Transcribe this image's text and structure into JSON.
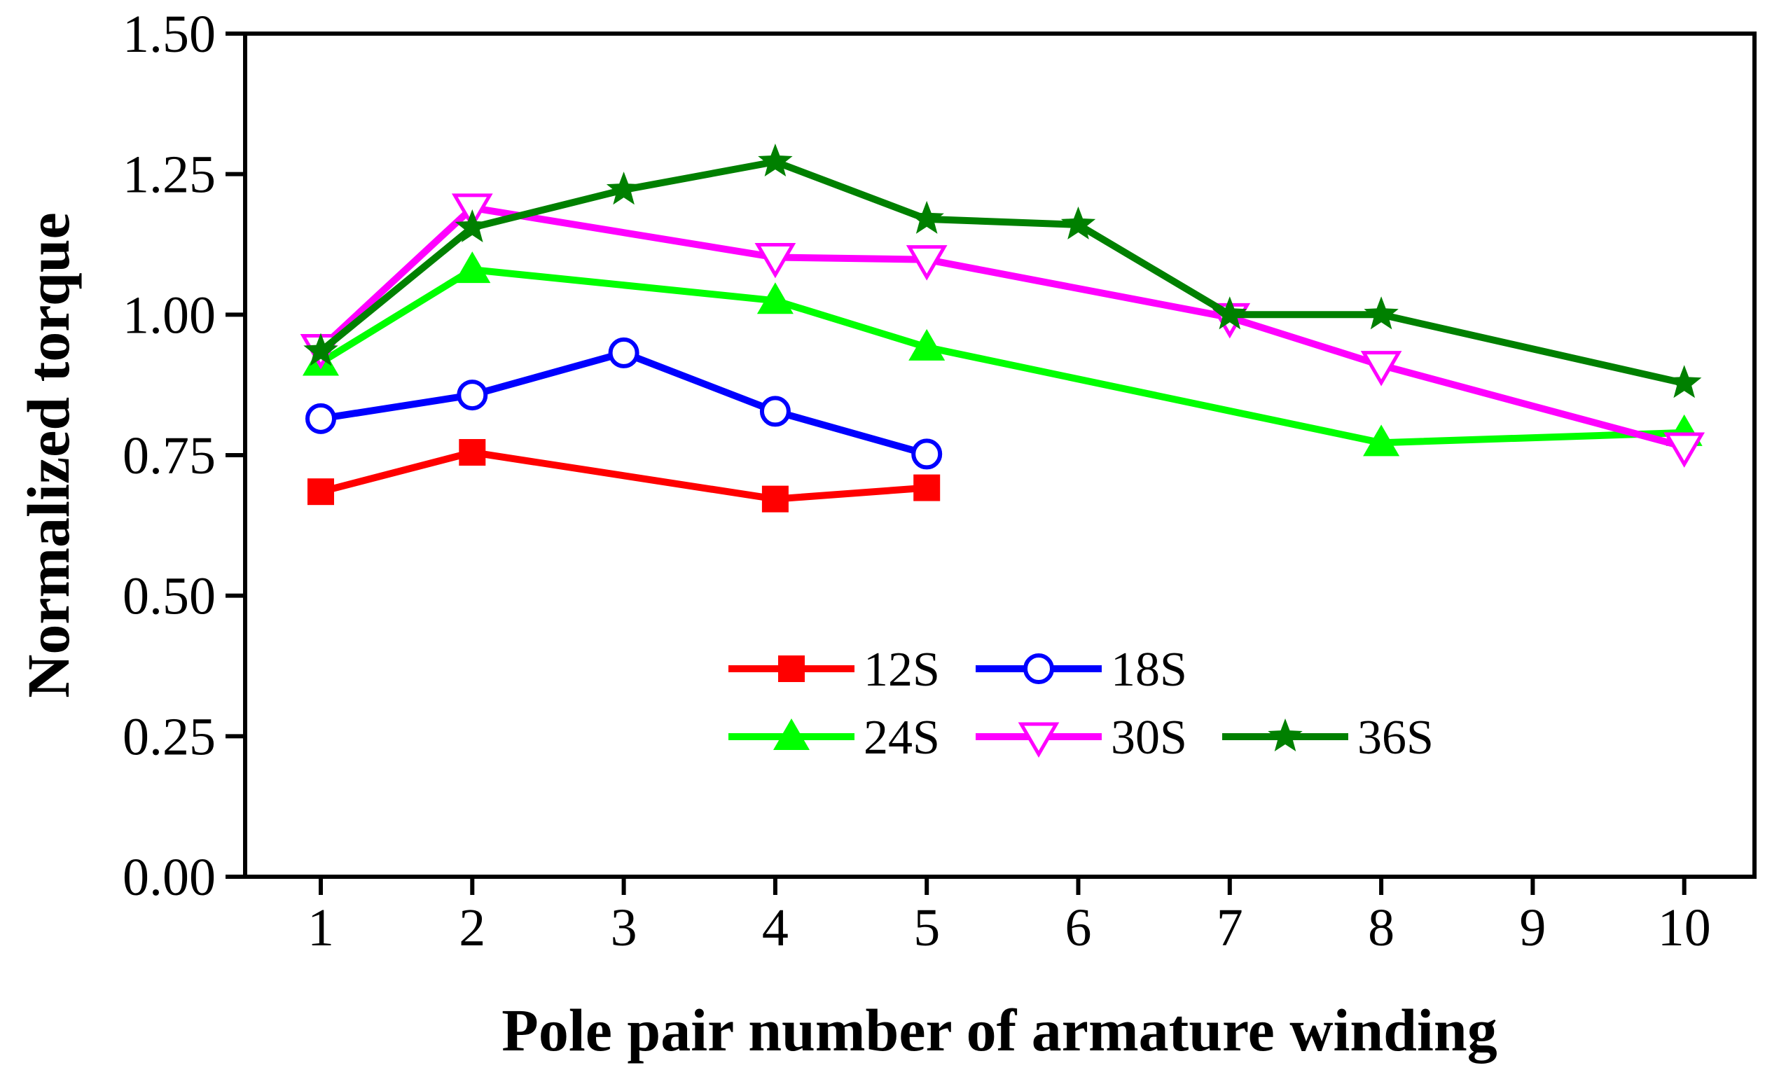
{
  "chart_data": {
    "type": "line",
    "title": "",
    "xlabel": "Pole pair number of armature winding",
    "ylabel": "Normalized torque",
    "xlim": [
      0.5,
      10.5
    ],
    "ylim": [
      0,
      1.5
    ],
    "xticks": [
      1,
      2,
      3,
      4,
      5,
      6,
      7,
      8,
      9,
      10
    ],
    "xtick_labels": [
      "1",
      "2",
      "3",
      "4",
      "5",
      "6",
      "7",
      "8",
      "9",
      "10"
    ],
    "yticks": [
      0,
      0.25,
      0.5,
      0.75,
      1.0,
      1.25,
      1.5
    ],
    "ytick_labels": [
      "0.00",
      "0.25",
      "0.50",
      "0.75",
      "1.00",
      "1.25",
      "1.50"
    ],
    "grid": false,
    "legend_position": "lower-center",
    "series": [
      {
        "name": "12S",
        "color": "#ff0000",
        "marker": "square-filled",
        "x": [
          1,
          2,
          4,
          5
        ],
        "y": [
          0.685,
          0.755,
          0.672,
          0.692
        ]
      },
      {
        "name": "18S",
        "color": "#0000ff",
        "marker": "circle-open",
        "x": [
          1,
          2,
          3,
          4,
          5
        ],
        "y": [
          0.815,
          0.857,
          0.932,
          0.828,
          0.752
        ]
      },
      {
        "name": "24S",
        "color": "#00ff00",
        "marker": "triangle-up-filled",
        "x": [
          1,
          2,
          4,
          5,
          8,
          10
        ],
        "y": [
          0.915,
          1.08,
          1.025,
          0.942,
          0.772,
          0.79
        ]
      },
      {
        "name": "30S",
        "color": "#ff00ff",
        "marker": "triangle-down-open",
        "x": [
          1,
          2,
          4,
          5,
          7,
          8,
          10
        ],
        "y": [
          0.94,
          1.19,
          1.102,
          1.098,
          0.995,
          0.91,
          0.765
        ]
      },
      {
        "name": "36S",
        "color": "#008000",
        "marker": "star-filled",
        "x": [
          1,
          2,
          3,
          4,
          5,
          6,
          7,
          8,
          10
        ],
        "y": [
          0.935,
          1.155,
          1.222,
          1.272,
          1.17,
          1.16,
          1.0,
          1.0,
          0.878
        ]
      }
    ]
  }
}
